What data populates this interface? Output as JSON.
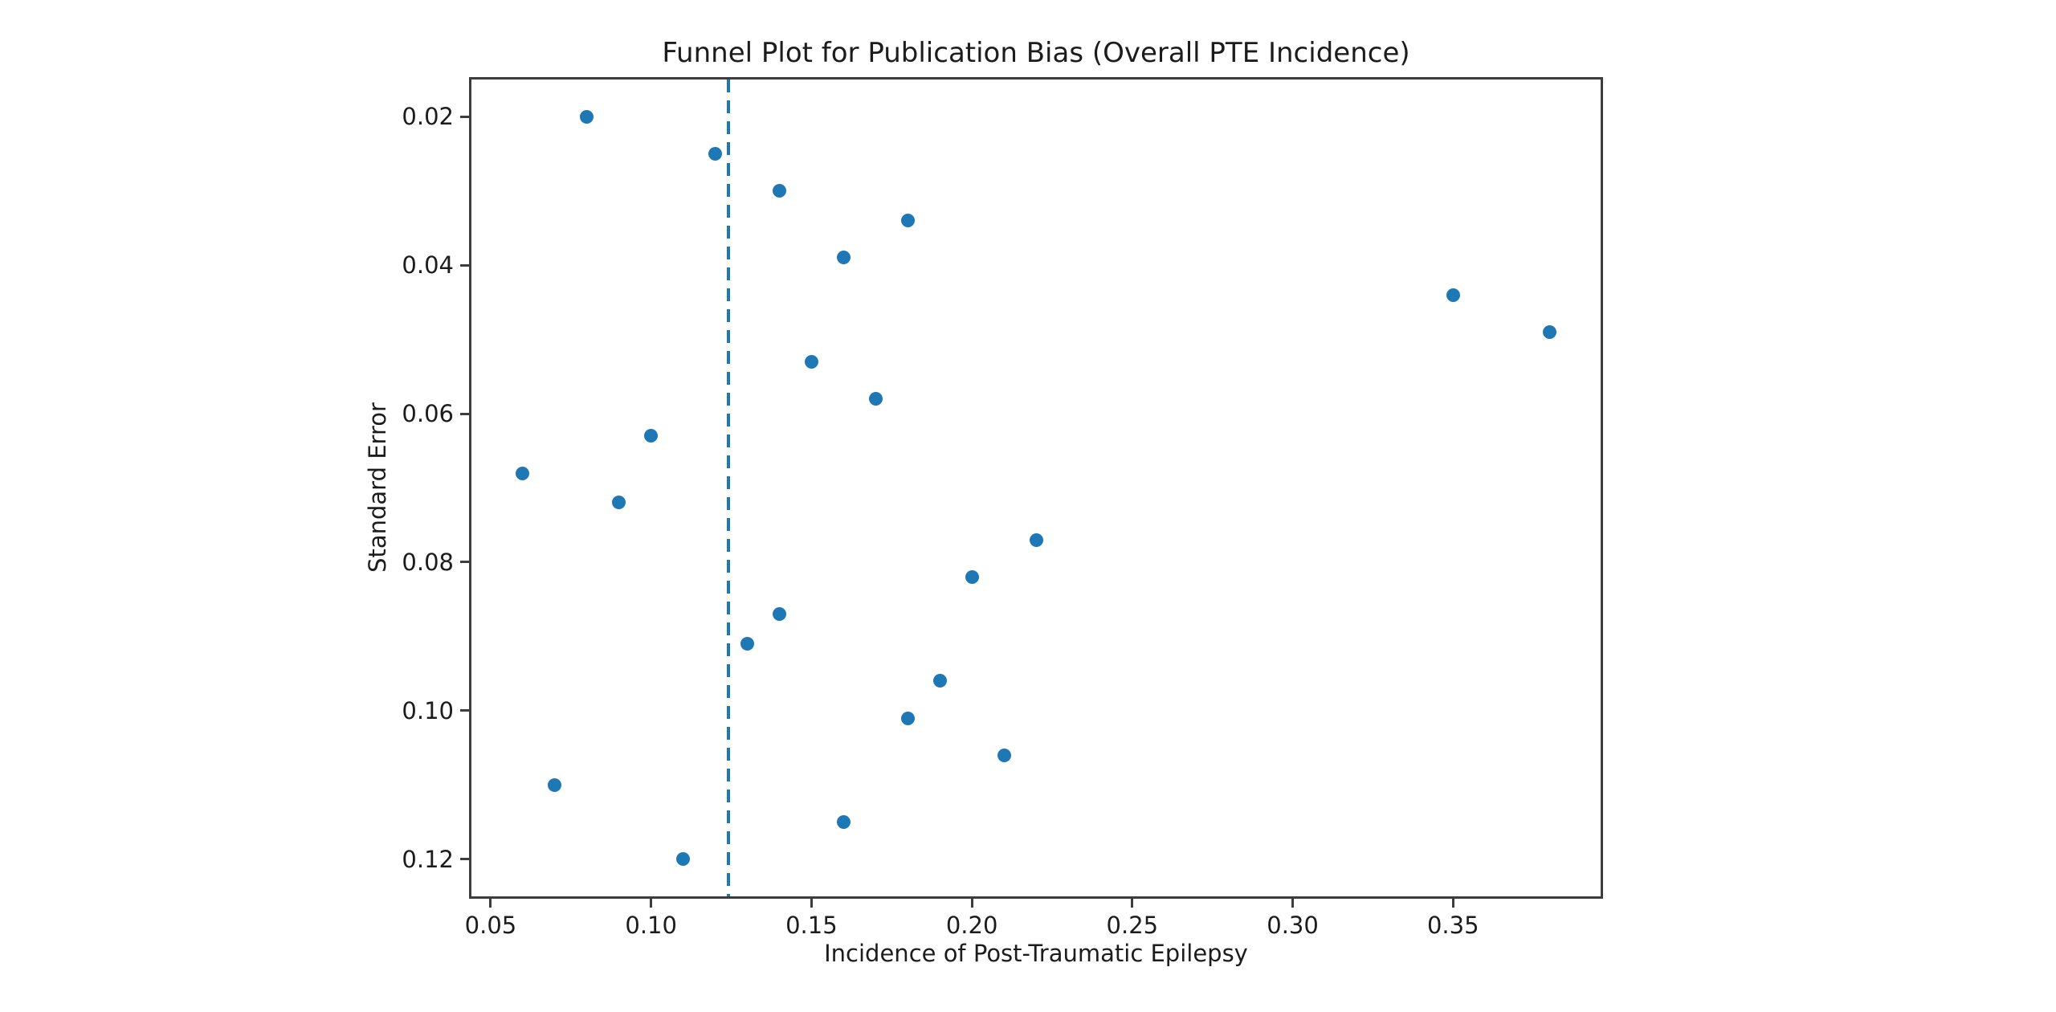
{
  "chart_data": {
    "type": "scatter",
    "title": "Funnel Plot for Publication Bias (Overall PTE Incidence)",
    "xlabel": "Incidence of Post-Traumatic Epilepsy",
    "ylabel": "Standard Error",
    "grid": false,
    "legend": null,
    "n_points": 22,
    "point_color": "#1f77b4",
    "axis_color": "#3d3d3d",
    "text_color": "#1c1c1c",
    "x_axis": {
      "range": [
        0.044,
        0.396
      ],
      "ticks": [
        0.05,
        0.1,
        0.15,
        0.2,
        0.25,
        0.3,
        0.35
      ],
      "tick_labels": [
        "0.05",
        "0.10",
        "0.15",
        "0.20",
        "0.25",
        "0.30",
        "0.35"
      ]
    },
    "y_axis": {
      "range": [
        0.015,
        0.125
      ],
      "inverted": true,
      "ticks": [
        0.02,
        0.04,
        0.06,
        0.08,
        0.1,
        0.12
      ],
      "tick_labels": [
        "0.02",
        "0.04",
        "0.06",
        "0.08",
        "0.10",
        "0.12"
      ]
    },
    "reference_line": {
      "orientation": "vertical",
      "style": "dashed",
      "x": 0.124,
      "color": "#1f77b4"
    },
    "points": [
      {
        "x": 0.08,
        "se": 0.02
      },
      {
        "x": 0.12,
        "se": 0.025
      },
      {
        "x": 0.14,
        "se": 0.03
      },
      {
        "x": 0.18,
        "se": 0.034
      },
      {
        "x": 0.16,
        "se": 0.039
      },
      {
        "x": 0.35,
        "se": 0.044
      },
      {
        "x": 0.38,
        "se": 0.049
      },
      {
        "x": 0.15,
        "se": 0.053
      },
      {
        "x": 0.17,
        "se": 0.058
      },
      {
        "x": 0.1,
        "se": 0.063
      },
      {
        "x": 0.06,
        "se": 0.068
      },
      {
        "x": 0.09,
        "se": 0.072
      },
      {
        "x": 0.22,
        "se": 0.077
      },
      {
        "x": 0.2,
        "se": 0.082
      },
      {
        "x": 0.14,
        "se": 0.087
      },
      {
        "x": 0.13,
        "se": 0.091
      },
      {
        "x": 0.19,
        "se": 0.096
      },
      {
        "x": 0.18,
        "se": 0.101
      },
      {
        "x": 0.21,
        "se": 0.106
      },
      {
        "x": 0.07,
        "se": 0.11
      },
      {
        "x": 0.16,
        "se": 0.115
      },
      {
        "x": 0.11,
        "se": 0.12
      }
    ]
  }
}
